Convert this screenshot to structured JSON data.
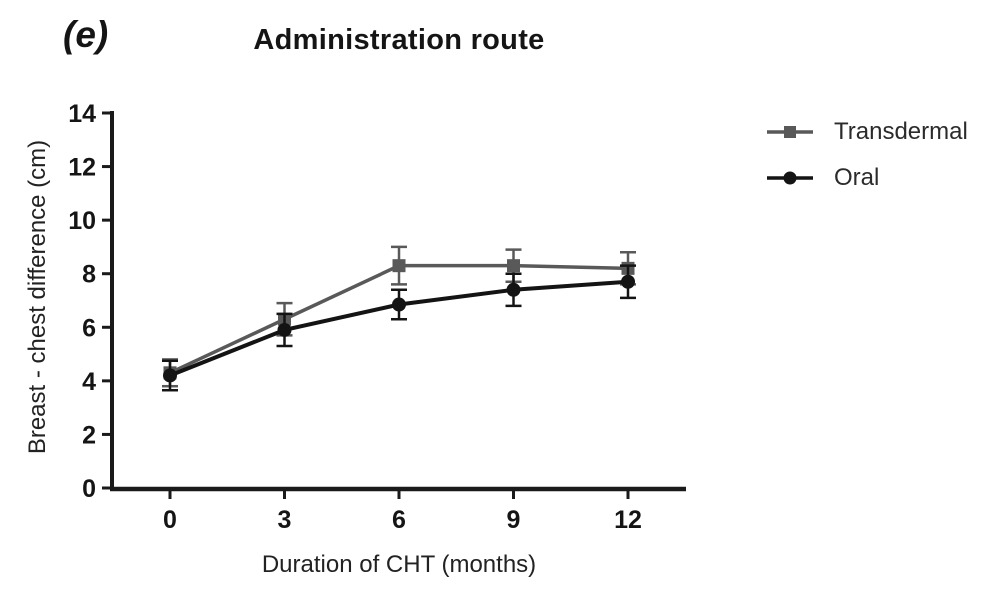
{
  "figure": {
    "panel_label": "(e)"
  },
  "chart_data": {
    "type": "line",
    "title": "Administration route",
    "xlabel": "Duration of CHT (months)",
    "ylabel": "Breast - chest difference (cm)",
    "x": [
      0,
      3,
      6,
      9,
      12
    ],
    "xticks": [
      0,
      3,
      6,
      9,
      12
    ],
    "yticks": [
      0,
      2,
      4,
      6,
      8,
      10,
      12,
      14
    ],
    "xlim": [
      0,
      12
    ],
    "ylim": [
      0,
      14
    ],
    "grid": false,
    "legend_position": "right",
    "axis_color": "#1a1a1a",
    "series": [
      {
        "name": "Transdermal",
        "marker": "square",
        "color": "#595959",
        "values": [
          4.3,
          6.3,
          8.3,
          8.3,
          8.2
        ],
        "errors": [
          0.5,
          0.6,
          0.7,
          0.6,
          0.6
        ]
      },
      {
        "name": "Oral",
        "marker": "circle",
        "color": "#141414",
        "values": [
          4.2,
          5.9,
          6.85,
          7.4,
          7.7
        ],
        "errors": [
          0.55,
          0.6,
          0.55,
          0.6,
          0.6
        ]
      }
    ]
  }
}
